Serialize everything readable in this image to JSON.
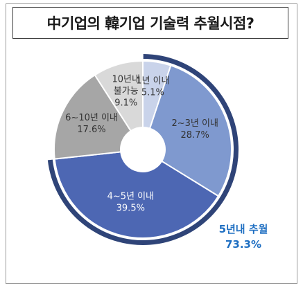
{
  "chart_data": {
    "type": "pie",
    "title": "中기업의 韓기업 기술력 추월시점?",
    "categories": [
      "1년 이내",
      "2~3년 이내",
      "4~5년 이내",
      "6~10년 이내",
      "10년내 불가능"
    ],
    "values": [
      5.1,
      28.7,
      39.5,
      17.6,
      9.1
    ],
    "value_labels": [
      "5.1%",
      "28.7%",
      "39.5%",
      "17.6%",
      "9.1%"
    ],
    "colors": [
      "#c9d3ea",
      "#7f99cf",
      "#4d67b3",
      "#a6a6a6",
      "#d9d9d9"
    ],
    "donut": true,
    "highlight": {
      "label": "5년내 추월",
      "value": "73.3%",
      "covers": [
        "1년 이내",
        "2~3년 이내",
        "4~5년 이내"
      ],
      "arc_color": "#2f4478",
      "text_color": "#1f6fc2"
    }
  }
}
